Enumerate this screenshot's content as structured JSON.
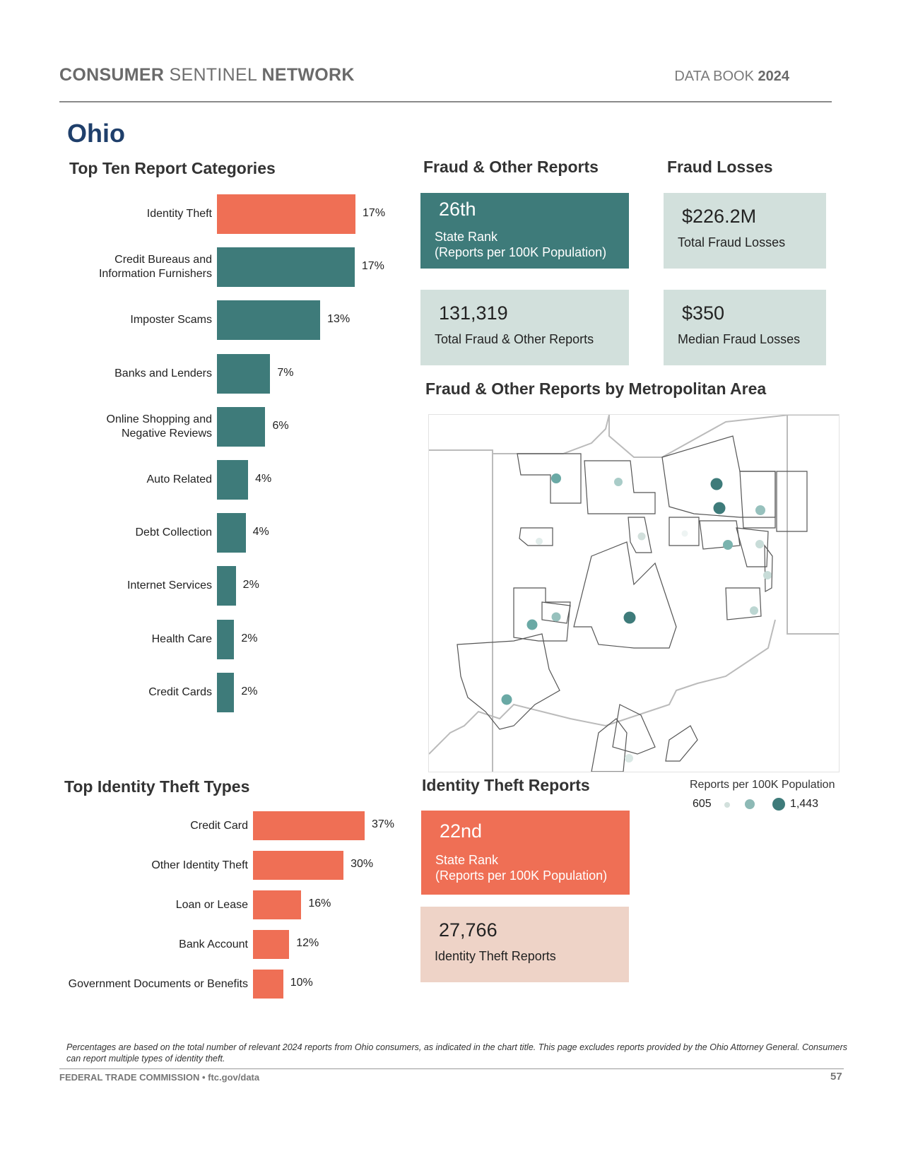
{
  "header": {
    "brand_bold1": "CONSUMER",
    "brand_mid": "SENTINEL",
    "brand_bold2": "NETWORK",
    "book_label": "DATA BOOK",
    "book_year": "2024"
  },
  "state_name": "Ohio",
  "sections": {
    "top_ten": "Top Ten Report Categories",
    "fraud_reports": "Fraud & Other Reports",
    "fraud_losses": "Fraud Losses",
    "metro_map": "Fraud & Other Reports by Metropolitan Area",
    "id_theft_types": "Top Identity Theft Types",
    "id_theft_reports": "Identity Theft Reports"
  },
  "stats": {
    "fraud_rank": "26th",
    "fraud_rank_label1": "State Rank",
    "fraud_rank_label2": "(Reports per 100K Population)",
    "total_losses": "$226.2M",
    "total_losses_label": "Total Fraud Losses",
    "total_reports": "131,319",
    "total_reports_label": "Total Fraud & Other Reports",
    "median_loss": "$350",
    "median_loss_label": "Median Fraud Losses",
    "idt_rank": "22nd",
    "idt_rank_label1": "State Rank",
    "idt_rank_label2": "(Reports per 100K Population)",
    "idt_reports": "27,766",
    "idt_reports_label": "Identity Theft Reports"
  },
  "legend": {
    "title": "Reports per 100K Population",
    "min": "605",
    "max": "1,443"
  },
  "colors": {
    "teal": "#3e7b7a",
    "coral": "#ef6f55",
    "light_teal": "#d2e0dc",
    "light_coral": "#eed3c7",
    "title_blue": "#1f3f6b"
  },
  "chart_data": [
    {
      "type": "bar",
      "orientation": "horizontal",
      "title": "Top Ten Report Categories",
      "categories": [
        "Identity Theft",
        "Credit Bureaus and\nInformation Furnishers",
        "Imposter Scams",
        "Banks and Lenders",
        "Online Shopping and\nNegative Reviews",
        "Auto Related",
        "Debt Collection",
        "Internet Services",
        "Health Care",
        "Credit Cards"
      ],
      "values": [
        17,
        17,
        13,
        7,
        6,
        4,
        4,
        2,
        2,
        2
      ],
      "value_labels": [
        "17%",
        "17%",
        "13%",
        "7%",
        "6%",
        "4%",
        "4%",
        "2%",
        "2%",
        "2%"
      ],
      "bar_values": [
        16.9,
        16.8,
        12.6,
        6.5,
        5.9,
        3.8,
        3.5,
        2.3,
        2.1,
        2.1
      ],
      "highlight_index": 0
    },
    {
      "type": "bar",
      "orientation": "horizontal",
      "title": "Top Identity Theft Types",
      "categories": [
        "Credit Card",
        "Other Identity Theft",
        "Loan or Lease",
        "Bank Account",
        "Government Documents or Benefits"
      ],
      "values": [
        37,
        30,
        16,
        12,
        10
      ],
      "value_labels": [
        "37%",
        "30%",
        "16%",
        "12%",
        "10%"
      ]
    }
  ],
  "footer": {
    "note": "Percentages are based on the total number of relevant 2024 reports from Ohio consumers, as indicated in the chart title.  This page excludes reports provided by the Ohio Attorney General.  Consumers can report multiple types of identity theft.",
    "agency": "FEDERAL TRADE COMMISSION • ftc.gov/data",
    "page": "57"
  }
}
